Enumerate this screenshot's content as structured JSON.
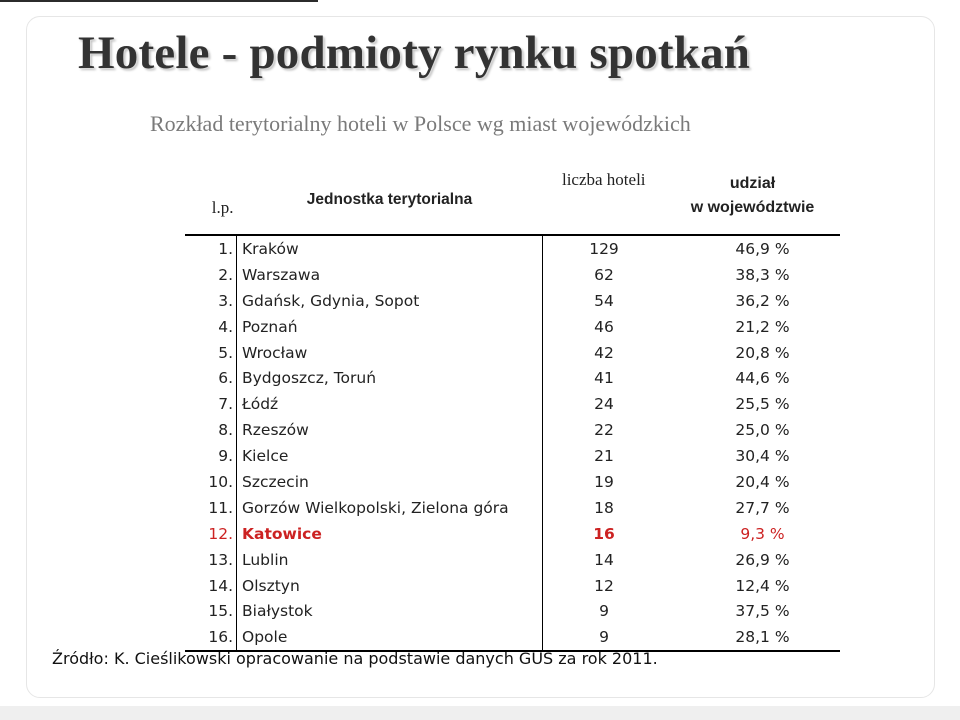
{
  "title": "Hotele - podmioty rynku spotkań",
  "subtitle": "Rozkład terytorialny hoteli w Polsce wg  miast wojewódzkich",
  "table": {
    "headers": {
      "lp": "l.p.",
      "unit": "Jednostka terytorialna",
      "count": "liczba hoteli",
      "share_line1": "udział",
      "share_line2": "w województwie"
    },
    "rows": [
      {
        "lp": "1.",
        "name": "Kraków",
        "count": "129",
        "share": "46,9 %"
      },
      {
        "lp": "2.",
        "name": "Warszawa",
        "count": "62",
        "share": "38,3 %"
      },
      {
        "lp": "3.",
        "name": "Gdańsk, Gdynia, Sopot",
        "count": "54",
        "share": "36,2 %"
      },
      {
        "lp": "4.",
        "name": "Poznań",
        "count": "46",
        "share": "21,2 %"
      },
      {
        "lp": "5.",
        "name": "Wrocław",
        "count": "42",
        "share": "20,8 %"
      },
      {
        "lp": "6.",
        "name": "Bydgoszcz, Toruń",
        "count": "41",
        "share": "44,6 %"
      },
      {
        "lp": "7.",
        "name": "Łódź",
        "count": "24",
        "share": "25,5 %"
      },
      {
        "lp": "8.",
        "name": "Rzeszów",
        "count": "22",
        "share": "25,0 %"
      },
      {
        "lp": "9.",
        "name": "Kielce",
        "count": "21",
        "share": "30,4 %"
      },
      {
        "lp": "10.",
        "name": "Szczecin",
        "count": "19",
        "share": "20,4 %"
      },
      {
        "lp": "11.",
        "name": "Gorzów Wielkopolski, Zielona góra",
        "count": "18",
        "share": "27,7 %"
      },
      {
        "lp": "12.",
        "name": "Katowice",
        "count": "16",
        "share": "9,3 %"
      },
      {
        "lp": "13.",
        "name": "Lublin",
        "count": "14",
        "share": "26,9 %"
      },
      {
        "lp": "14.",
        "name": "Olsztyn",
        "count": "12",
        "share": "12,4 %"
      },
      {
        "lp": "15.",
        "name": "Białystok",
        "count": "9",
        "share": "37,5 %"
      },
      {
        "lp": "16.",
        "name": "Opole",
        "count": "9",
        "share": "28,1 %"
      }
    ]
  },
  "source": "Źródło: K. Cieślikowski opracowanie na podstawie danych GUS za rok 2011.",
  "colors": {
    "highlight": "#cc2222",
    "title": "#333333",
    "subtitle": "#7a7a7a"
  }
}
